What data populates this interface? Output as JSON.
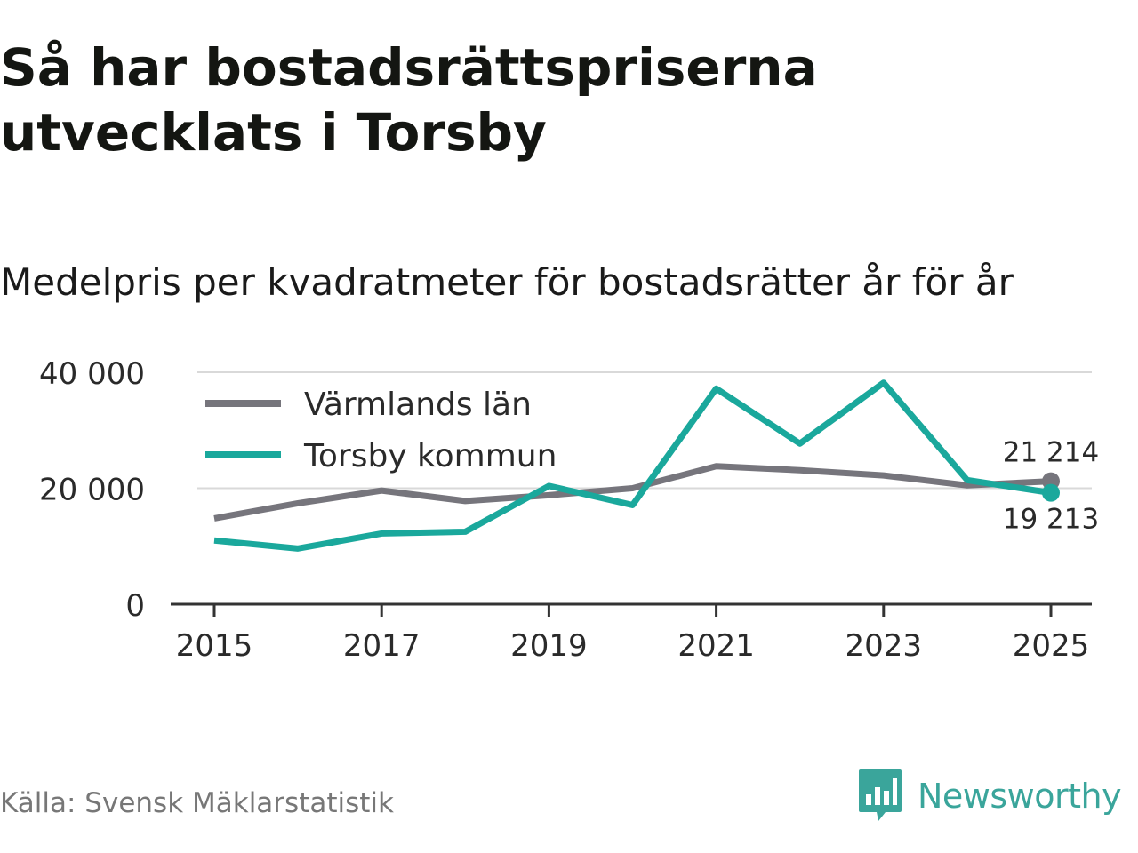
{
  "title": "Så har bostadsrättspriserna utvecklats i Torsby",
  "subtitle": "Medelpris per kvadratmeter för bostadsrätter år för år",
  "source": "Källa: Svensk Mäklarstatistik",
  "brand": "Newsworthy",
  "colors": {
    "gray": "#76757c",
    "teal": "#1aa89c",
    "grid": "#d9d9d9",
    "axis": "#333333"
  },
  "chart_data": {
    "type": "line",
    "x": [
      2015,
      2016,
      2017,
      2018,
      2019,
      2020,
      2021,
      2022,
      2023,
      2024,
      2025
    ],
    "x_ticks": [
      "2015",
      "2017",
      "2019",
      "2021",
      "2023",
      "2025"
    ],
    "y_ticks": [
      "0",
      "20 000",
      "40 000"
    ],
    "ylim": [
      0,
      40000
    ],
    "series": [
      {
        "name": "Värmlands län",
        "color": "#76757c",
        "values": [
          14800,
          17400,
          19600,
          17800,
          18800,
          20000,
          23800,
          23100,
          22200,
          20500,
          21214
        ],
        "end_label": "21 214"
      },
      {
        "name": "Torsby kommun",
        "color": "#1aa89c",
        "values": [
          11000,
          9600,
          12200,
          12500,
          20400,
          17100,
          37200,
          27700,
          38200,
          21400,
          19213
        ],
        "end_label": "19 213"
      }
    ],
    "legend_position": "top-left"
  }
}
